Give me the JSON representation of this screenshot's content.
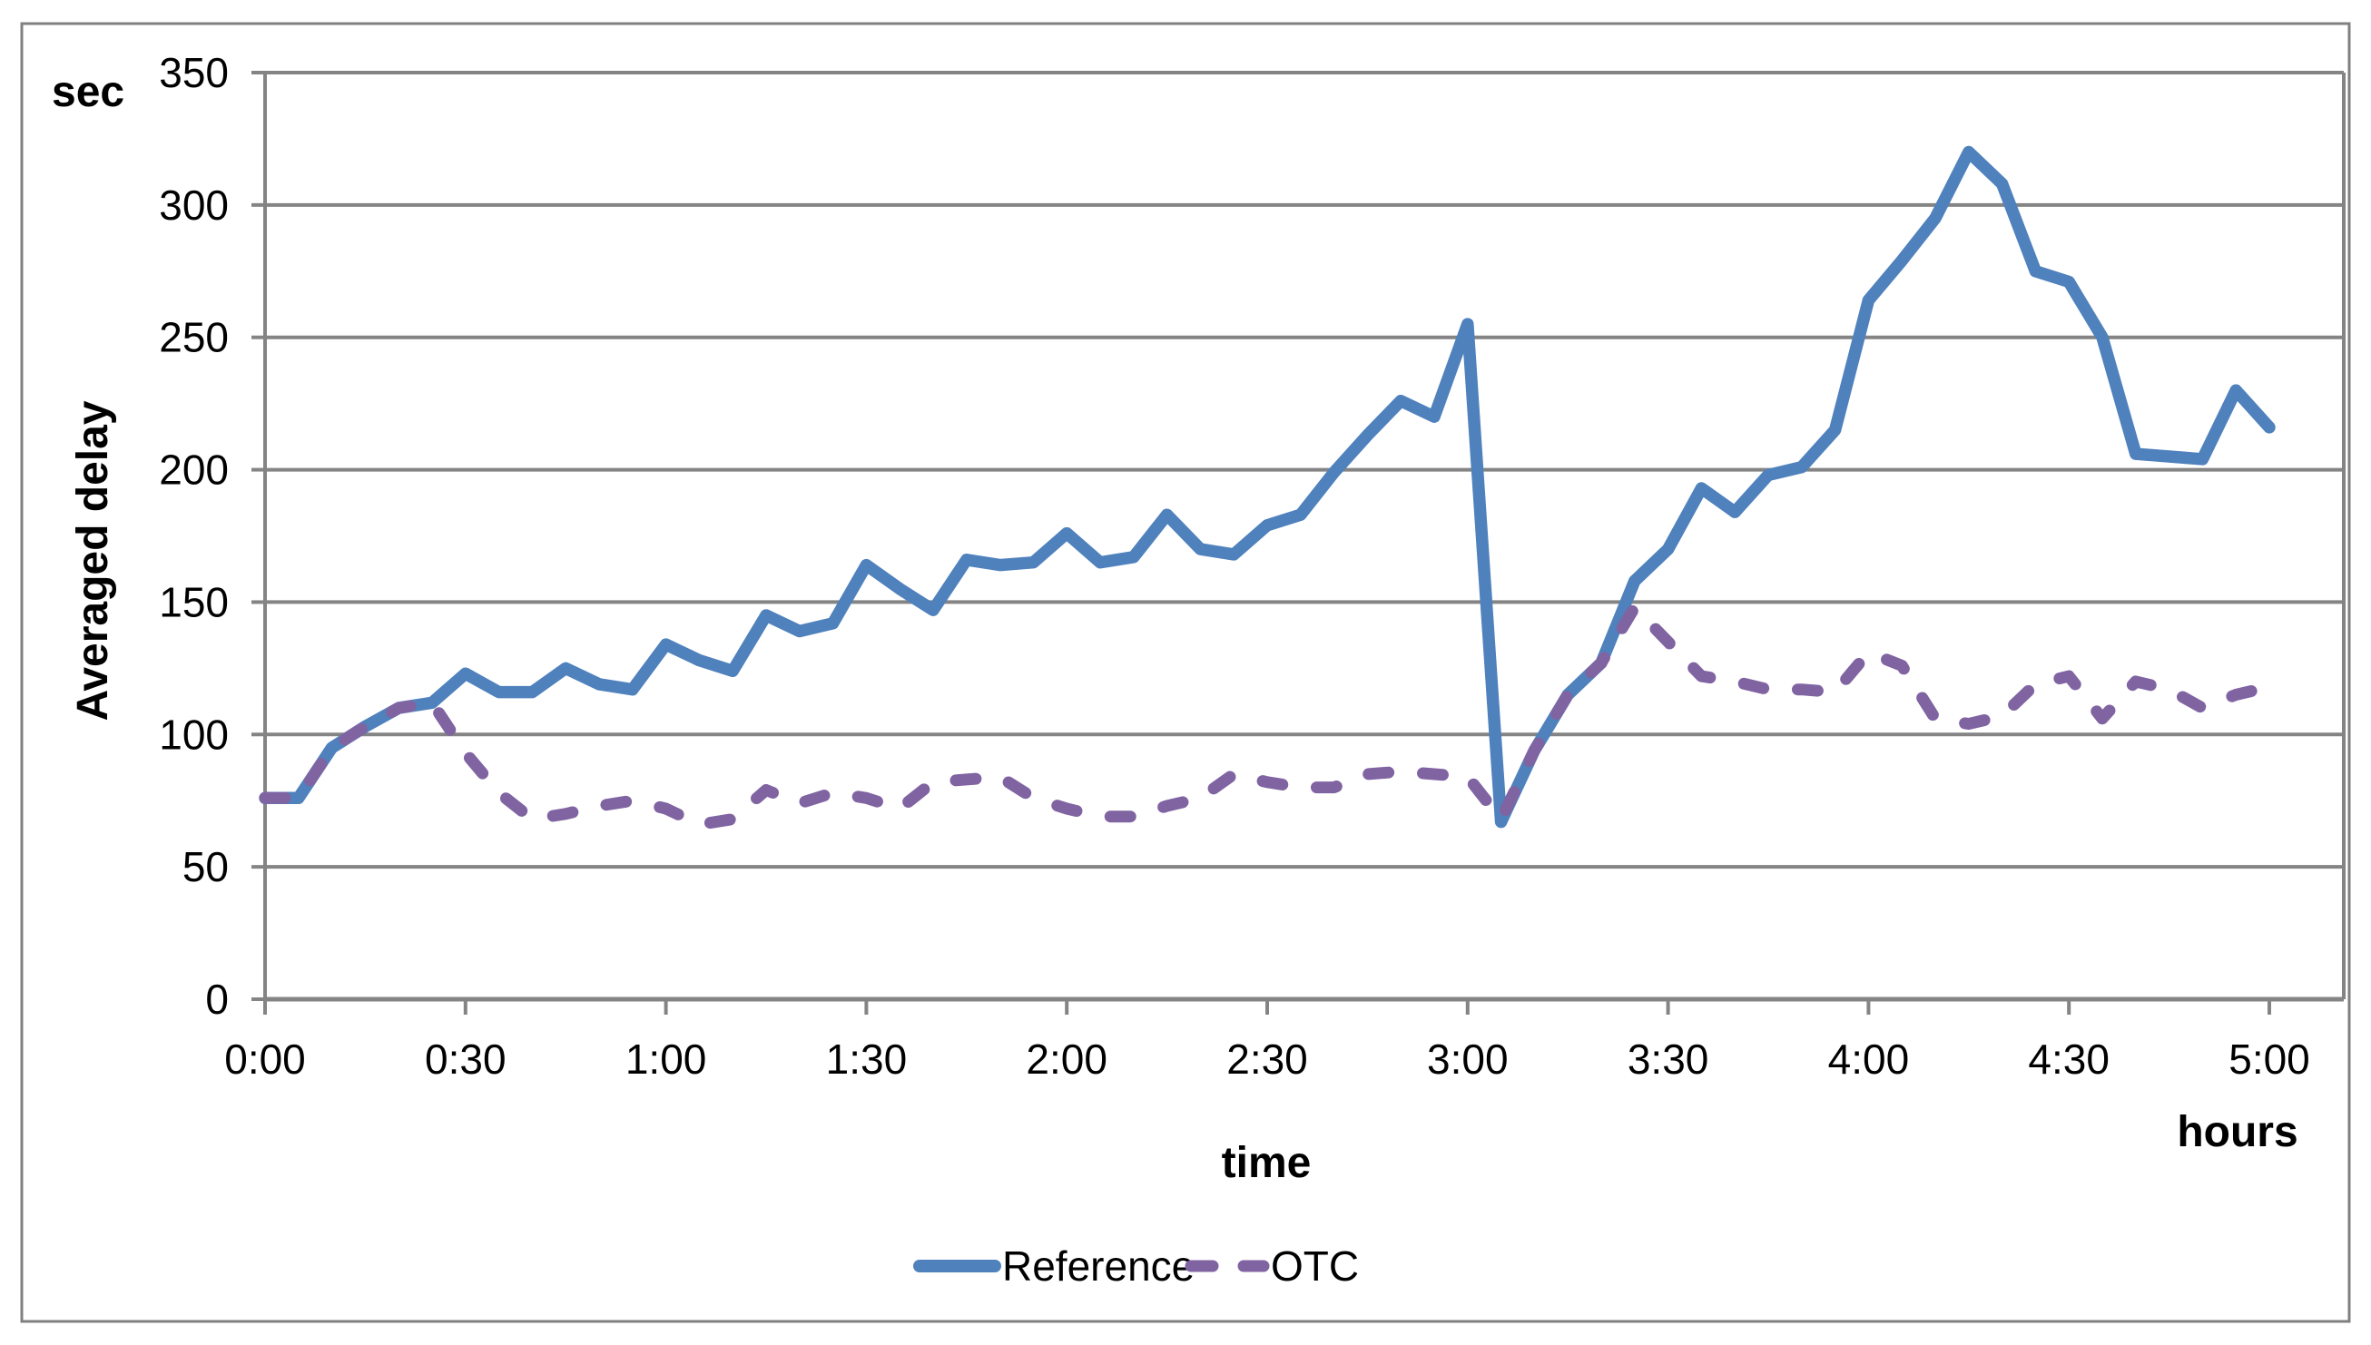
{
  "title_labels": {
    "y_unit": "sec",
    "y_axis_title": "Averaged delay",
    "x_axis_title": "time",
    "x_unit": "hours"
  },
  "legend": {
    "position": "bottom-center",
    "items": [
      {
        "label": "Reference",
        "style": "solid",
        "color": "#4F81BD"
      },
      {
        "label": "OTC",
        "style": "dashed",
        "color": "#8064A2"
      }
    ]
  },
  "colors": {
    "grid": "#848484",
    "axis": "#848484",
    "plot_border": "#848484",
    "outer_border": "#808080",
    "background": "#FFFFFF",
    "reference_line": "#4F81BD",
    "otc_line": "#8064A2"
  },
  "chart_data": {
    "type": "line",
    "title": "",
    "xlabel": "time",
    "x_unit": "hours",
    "ylabel": "Averaged delay",
    "y_unit": "sec",
    "ylim": [
      0,
      350
    ],
    "y_ticks": [
      0,
      50,
      100,
      150,
      200,
      250,
      300,
      350
    ],
    "x_tick_labels": [
      "0:00",
      "0:30",
      "1:00",
      "1:30",
      "2:00",
      "2:30",
      "3:00",
      "3:30",
      "4:00",
      "4:30",
      "5:00"
    ],
    "x_minutes": [
      0,
      5,
      10,
      15,
      20,
      25,
      30,
      35,
      40,
      45,
      50,
      55,
      60,
      65,
      70,
      75,
      80,
      85,
      90,
      95,
      100,
      105,
      110,
      115,
      120,
      125,
      130,
      135,
      140,
      145,
      150,
      155,
      160,
      165,
      170,
      175,
      180,
      185,
      190,
      195,
      200,
      205,
      210,
      215,
      220,
      225,
      230,
      235,
      240,
      245,
      250,
      255,
      260,
      265,
      270,
      275,
      280,
      285,
      290,
      295,
      300
    ],
    "grid": "horizontal",
    "legend_position": "bottom",
    "series": [
      {
        "name": "Reference",
        "color": "#4F81BD",
        "line_style": "solid",
        "values": [
          76,
          76,
          95,
          103,
          110,
          112,
          123,
          116,
          116,
          125,
          119,
          117,
          134,
          128,
          124,
          145,
          139,
          142,
          164,
          155,
          147,
          166,
          164,
          165,
          176,
          165,
          167,
          183,
          170,
          168,
          179,
          183,
          199,
          213,
          226,
          220,
          255,
          67,
          94,
          115,
          127,
          158,
          170,
          193,
          184,
          198,
          201,
          215,
          264,
          279,
          295,
          320,
          308,
          275,
          271,
          250,
          206,
          205,
          204,
          230,
          216
        ]
      },
      {
        "name": "OTC",
        "color": "#8064A2",
        "line_style": "dashed",
        "values": [
          76,
          76,
          95,
          103,
          110,
          112,
          93,
          78,
          68,
          70,
          73,
          75,
          72,
          66,
          68,
          79,
          74,
          78,
          76,
          72,
          82,
          83,
          84,
          76,
          72,
          69,
          69,
          73,
          76,
          85,
          82,
          80,
          80,
          85,
          86,
          85,
          84,
          68,
          94,
          115,
          127,
          148,
          135,
          122,
          120,
          117,
          117,
          116,
          131,
          126,
          106,
          104,
          107,
          119,
          122,
          106,
          120,
          117,
          110,
          115,
          118
        ]
      }
    ]
  }
}
